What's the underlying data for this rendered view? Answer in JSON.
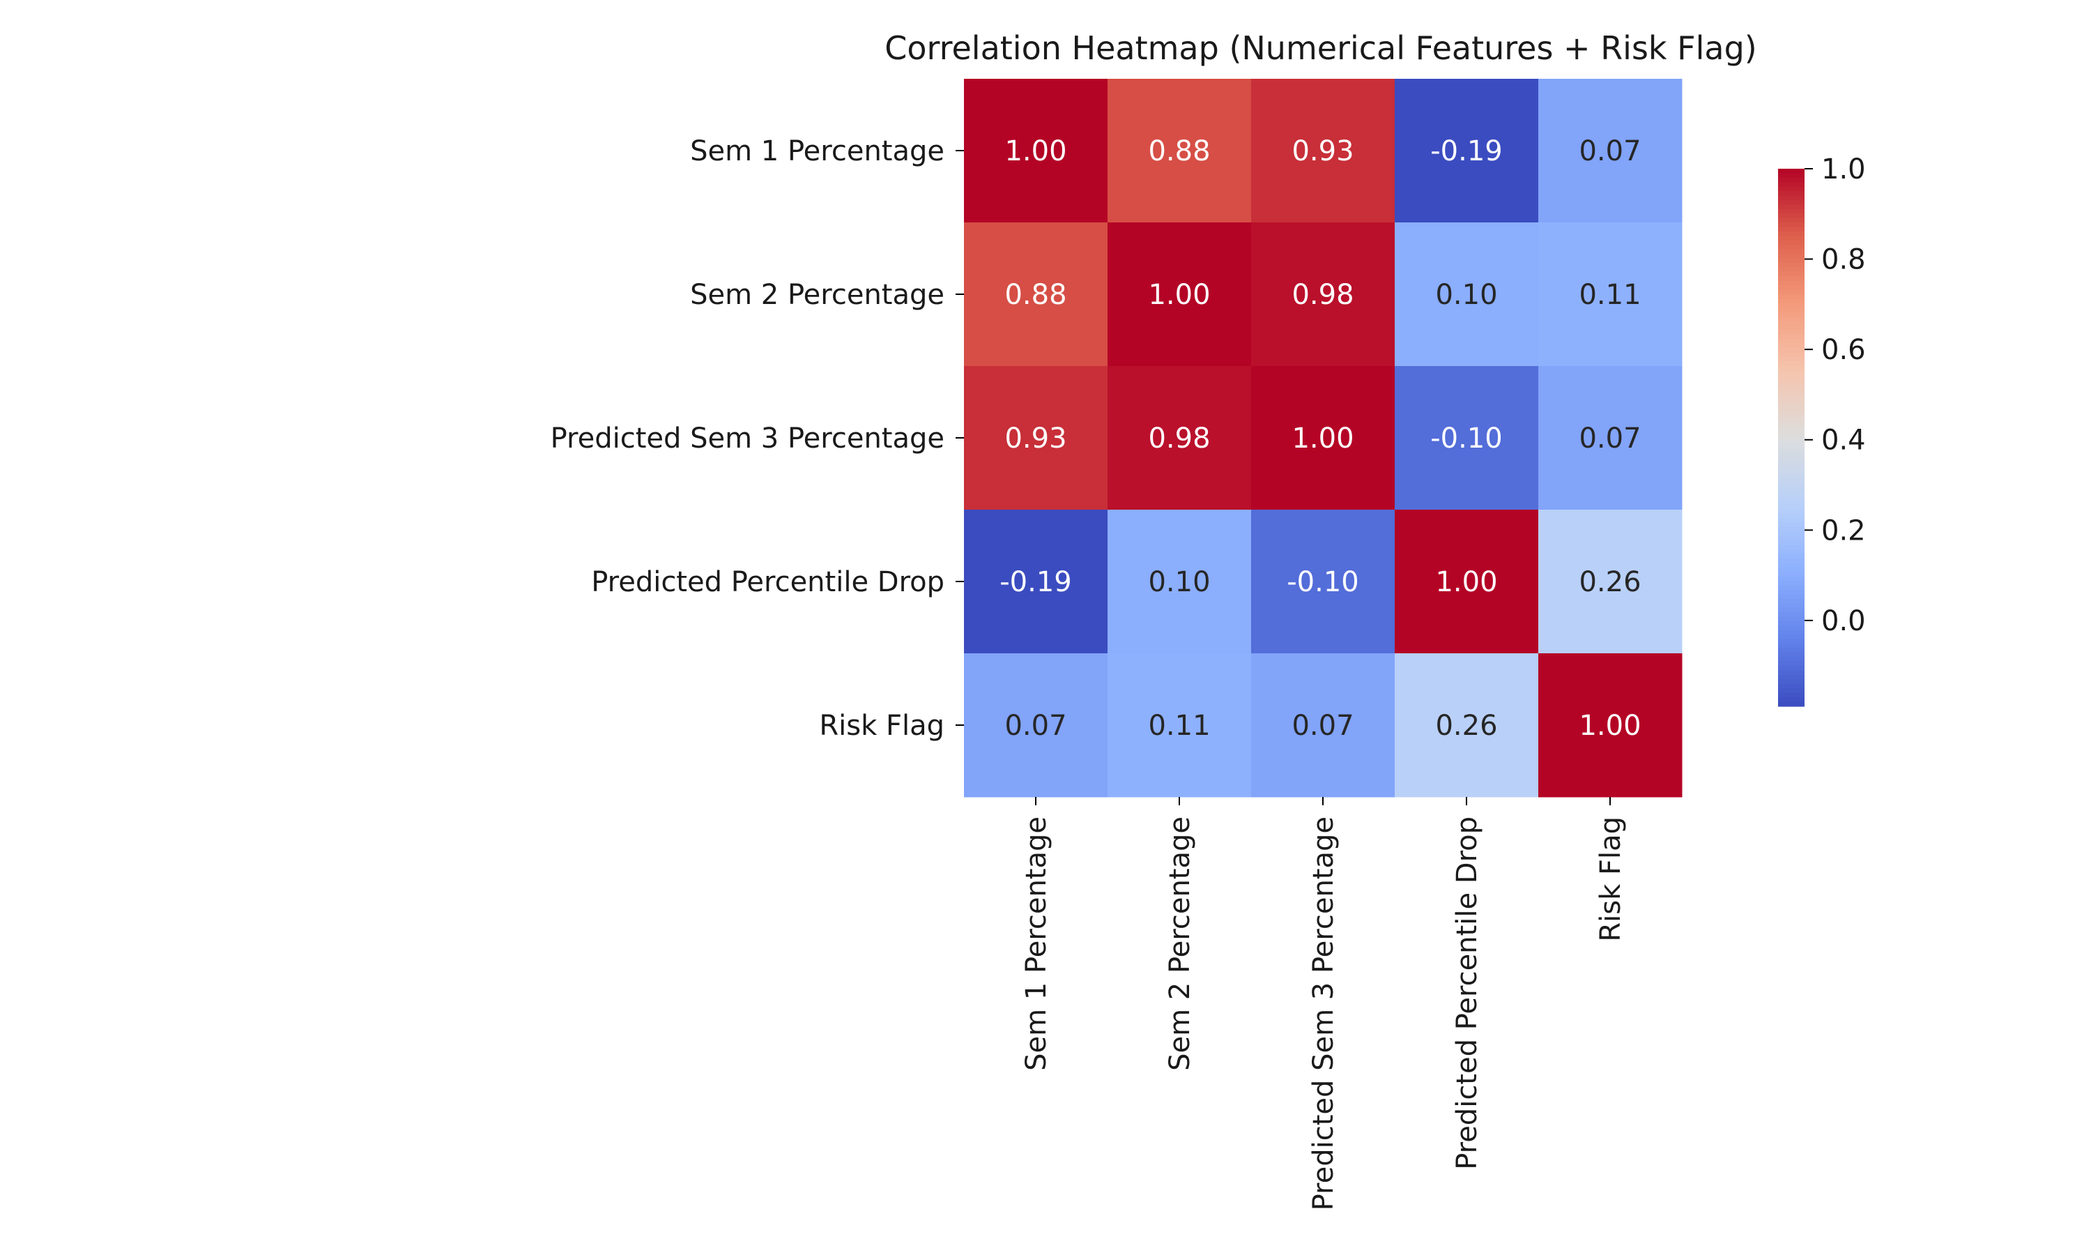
{
  "chart_data": {
    "type": "heatmap",
    "title": "Correlation Heatmap (Numerical Features + Risk Flag)",
    "row_labels": [
      "Sem 1 Percentage",
      "Sem 2 Percentage",
      "Predicted Sem 3 Percentage",
      "Predicted Percentile Drop",
      "Risk Flag"
    ],
    "col_labels": [
      "Sem 1 Percentage",
      "Sem 2 Percentage",
      "Predicted Sem 3 Percentage",
      "Predicted Percentile Drop",
      "Risk Flag"
    ],
    "values": [
      [
        1.0,
        0.88,
        0.93,
        -0.19,
        0.07
      ],
      [
        0.88,
        1.0,
        0.98,
        0.1,
        0.11
      ],
      [
        0.93,
        0.98,
        1.0,
        -0.1,
        0.07
      ],
      [
        -0.19,
        0.1,
        -0.1,
        1.0,
        0.26
      ],
      [
        0.07,
        0.11,
        0.07,
        0.26,
        1.0
      ]
    ],
    "annotation_format": "0.00",
    "colormap": "coolwarm",
    "vmin": -0.19,
    "vmax": 1.0,
    "colorbar": {
      "ticks": [
        0.0,
        0.2,
        0.4,
        0.6,
        0.8,
        1.0
      ],
      "tick_labels": [
        "0.0",
        "0.2",
        "0.4",
        "0.6",
        "0.8",
        "1.0"
      ]
    }
  }
}
